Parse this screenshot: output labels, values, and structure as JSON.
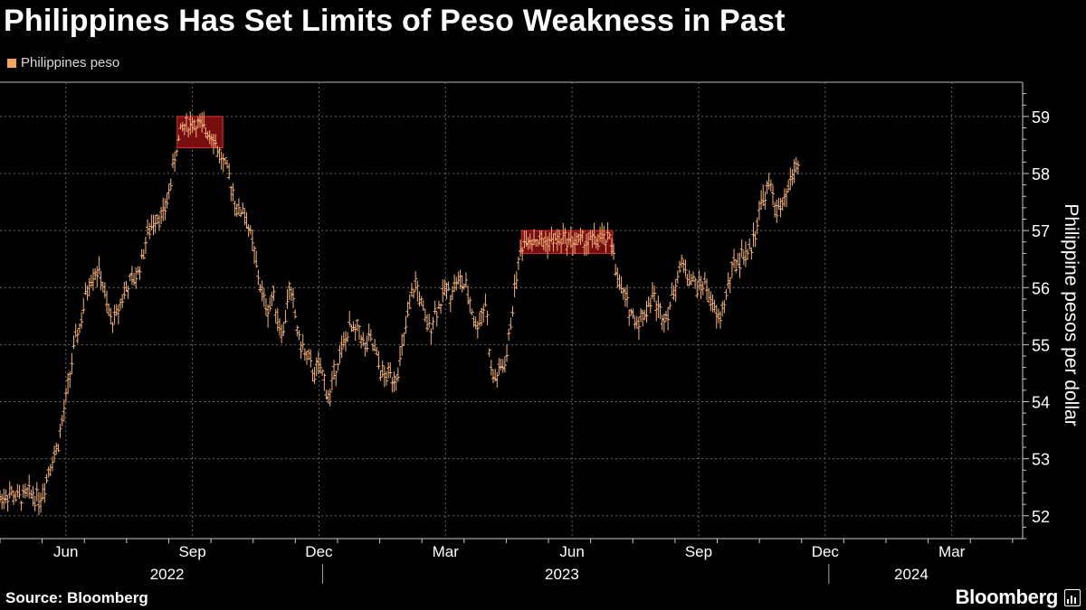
{
  "title": "Philippines Has Set Limits of Peso Weakness in Past",
  "legend": {
    "label": "Philippines peso",
    "color": "#f5a55a"
  },
  "source": "Source: Bloomberg",
  "brand": "Bloomberg",
  "colors": {
    "line": "#f5b37a",
    "band_fill": "#8b0f12",
    "band_stroke": "#e03030",
    "grid": "#666666",
    "axis": "#ffffff"
  },
  "chart_data": {
    "type": "ohlc",
    "title": "Philippines Has Set Limits of Peso Weakness in Past",
    "ylabel": "Philippine pesos per dollar",
    "ylim": [
      51.6,
      59.6
    ],
    "yticks": [
      52,
      53,
      54,
      55,
      56,
      57,
      58,
      59
    ],
    "xlim": [
      2022.29,
      2024.31
    ],
    "x_tick_labels": [
      {
        "label": "Jun",
        "x": 2022.42
      },
      {
        "label": "Sep",
        "x": 2022.67
      },
      {
        "label": "Dec",
        "x": 2022.92
      },
      {
        "label": "Mar",
        "x": 2023.17
      },
      {
        "label": "Jun",
        "x": 2023.42
      },
      {
        "label": "Sep",
        "x": 2023.67
      },
      {
        "label": "Dec",
        "x": 2023.92
      },
      {
        "label": "Mar",
        "x": 2024.17
      }
    ],
    "years": [
      {
        "label": "2022",
        "x": 2022.62
      },
      {
        "label": "2023",
        "x": 2023.4
      },
      {
        "label": "2024",
        "x": 2024.09
      }
    ],
    "year_separators": [
      2022.92,
      2023.92
    ],
    "series": [
      {
        "name": "Philippines peso",
        "points": [
          [
            2022.29,
            52.3
          ],
          [
            2022.31,
            52.4
          ],
          [
            2022.33,
            52.3
          ],
          [
            2022.35,
            52.4
          ],
          [
            2022.37,
            52.3
          ],
          [
            2022.38,
            52.6
          ],
          [
            2022.39,
            52.95
          ],
          [
            2022.4,
            53.1
          ],
          [
            2022.41,
            53.5
          ],
          [
            2022.42,
            54.0
          ],
          [
            2022.43,
            54.6
          ],
          [
            2022.44,
            55.1
          ],
          [
            2022.45,
            55.4
          ],
          [
            2022.46,
            55.9
          ],
          [
            2022.47,
            56.2
          ],
          [
            2022.48,
            56.3
          ],
          [
            2022.49,
            56.2
          ],
          [
            2022.5,
            55.7
          ],
          [
            2022.51,
            55.4
          ],
          [
            2022.52,
            55.5
          ],
          [
            2022.53,
            55.8
          ],
          [
            2022.54,
            56.0
          ],
          [
            2022.55,
            56.1
          ],
          [
            2022.56,
            56.2
          ],
          [
            2022.57,
            56.5
          ],
          [
            2022.58,
            56.9
          ],
          [
            2022.59,
            57.1
          ],
          [
            2022.6,
            57.3
          ],
          [
            2022.61,
            57.2
          ],
          [
            2022.62,
            57.5
          ],
          [
            2022.63,
            58.0
          ],
          [
            2022.64,
            58.5
          ],
          [
            2022.65,
            58.8
          ],
          [
            2022.67,
            58.9
          ],
          [
            2022.69,
            58.8
          ],
          [
            2022.71,
            58.7
          ],
          [
            2022.72,
            58.4
          ],
          [
            2022.73,
            58.2
          ],
          [
            2022.74,
            58.0
          ],
          [
            2022.75,
            57.7
          ],
          [
            2022.76,
            57.3
          ],
          [
            2022.77,
            57.4
          ],
          [
            2022.78,
            57.1
          ],
          [
            2022.79,
            56.7
          ],
          [
            2022.8,
            56.2
          ],
          [
            2022.81,
            55.8
          ],
          [
            2022.82,
            55.6
          ],
          [
            2022.83,
            55.9
          ],
          [
            2022.84,
            55.4
          ],
          [
            2022.85,
            55.2
          ],
          [
            2022.86,
            56.0
          ],
          [
            2022.87,
            55.7
          ],
          [
            2022.88,
            55.1
          ],
          [
            2022.89,
            54.9
          ],
          [
            2022.9,
            54.7
          ],
          [
            2022.91,
            54.5
          ],
          [
            2022.92,
            54.6
          ],
          [
            2022.93,
            54.4
          ],
          [
            2022.94,
            54.0
          ],
          [
            2022.95,
            54.5
          ],
          [
            2022.96,
            54.8
          ],
          [
            2022.97,
            55.0
          ],
          [
            2022.98,
            55.3
          ],
          [
            2022.99,
            55.2
          ],
          [
            2023.0,
            55.3
          ],
          [
            2023.01,
            54.9
          ],
          [
            2023.02,
            55.1
          ],
          [
            2023.03,
            54.9
          ],
          [
            2023.04,
            54.6
          ],
          [
            2023.05,
            54.4
          ],
          [
            2023.06,
            54.5
          ],
          [
            2023.07,
            54.4
          ],
          [
            2023.08,
            54.7
          ],
          [
            2023.09,
            55.2
          ],
          [
            2023.1,
            55.7
          ],
          [
            2023.11,
            56.1
          ],
          [
            2023.12,
            55.8
          ],
          [
            2023.13,
            55.4
          ],
          [
            2023.14,
            55.3
          ],
          [
            2023.15,
            55.6
          ],
          [
            2023.16,
            55.7
          ],
          [
            2023.17,
            56.0
          ],
          [
            2023.18,
            55.9
          ],
          [
            2023.19,
            56.1
          ],
          [
            2023.2,
            56.1
          ],
          [
            2023.21,
            56.0
          ],
          [
            2023.22,
            55.7
          ],
          [
            2023.23,
            55.3
          ],
          [
            2023.24,
            55.5
          ],
          [
            2023.25,
            55.8
          ],
          [
            2023.26,
            54.5
          ],
          [
            2023.27,
            54.4
          ],
          [
            2023.28,
            54.6
          ],
          [
            2023.29,
            54.7
          ],
          [
            2023.3,
            55.5
          ],
          [
            2023.31,
            56.2
          ],
          [
            2023.32,
            56.7
          ],
          [
            2023.33,
            56.9
          ],
          [
            2023.36,
            56.8
          ],
          [
            2023.4,
            56.85
          ],
          [
            2023.44,
            56.8
          ],
          [
            2023.48,
            56.85
          ],
          [
            2023.5,
            56.8
          ],
          [
            2023.51,
            56.1
          ],
          [
            2023.52,
            55.9
          ],
          [
            2023.53,
            55.7
          ],
          [
            2023.54,
            55.5
          ],
          [
            2023.55,
            55.4
          ],
          [
            2023.56,
            55.5
          ],
          [
            2023.57,
            55.7
          ],
          [
            2023.58,
            55.9
          ],
          [
            2023.59,
            55.6
          ],
          [
            2023.6,
            55.5
          ],
          [
            2023.61,
            55.6
          ],
          [
            2023.62,
            55.9
          ],
          [
            2023.63,
            56.3
          ],
          [
            2023.64,
            56.4
          ],
          [
            2023.65,
            56.2
          ],
          [
            2023.66,
            56.1
          ],
          [
            2023.67,
            56.0
          ],
          [
            2023.68,
            56.1
          ],
          [
            2023.69,
            55.9
          ],
          [
            2023.7,
            55.6
          ],
          [
            2023.71,
            55.4
          ],
          [
            2023.72,
            55.7
          ],
          [
            2023.73,
            56.1
          ],
          [
            2023.74,
            56.4
          ],
          [
            2023.75,
            56.5
          ],
          [
            2023.76,
            56.6
          ],
          [
            2023.77,
            56.6
          ],
          [
            2023.78,
            56.9
          ],
          [
            2023.79,
            57.4
          ],
          [
            2023.8,
            57.6
          ],
          [
            2023.81,
            57.8
          ],
          [
            2023.82,
            57.5
          ],
          [
            2023.83,
            57.3
          ],
          [
            2023.84,
            57.5
          ],
          [
            2023.85,
            57.8
          ],
          [
            2023.86,
            58.1
          ],
          [
            2023.87,
            58.2
          ]
        ]
      }
    ],
    "bands": [
      {
        "x0": 2022.64,
        "x1": 2022.73,
        "ymin": 58.45,
        "ymax": 59.0
      },
      {
        "x0": 2023.32,
        "x1": 2023.5,
        "ymin": 56.6,
        "ymax": 57.0
      }
    ]
  }
}
